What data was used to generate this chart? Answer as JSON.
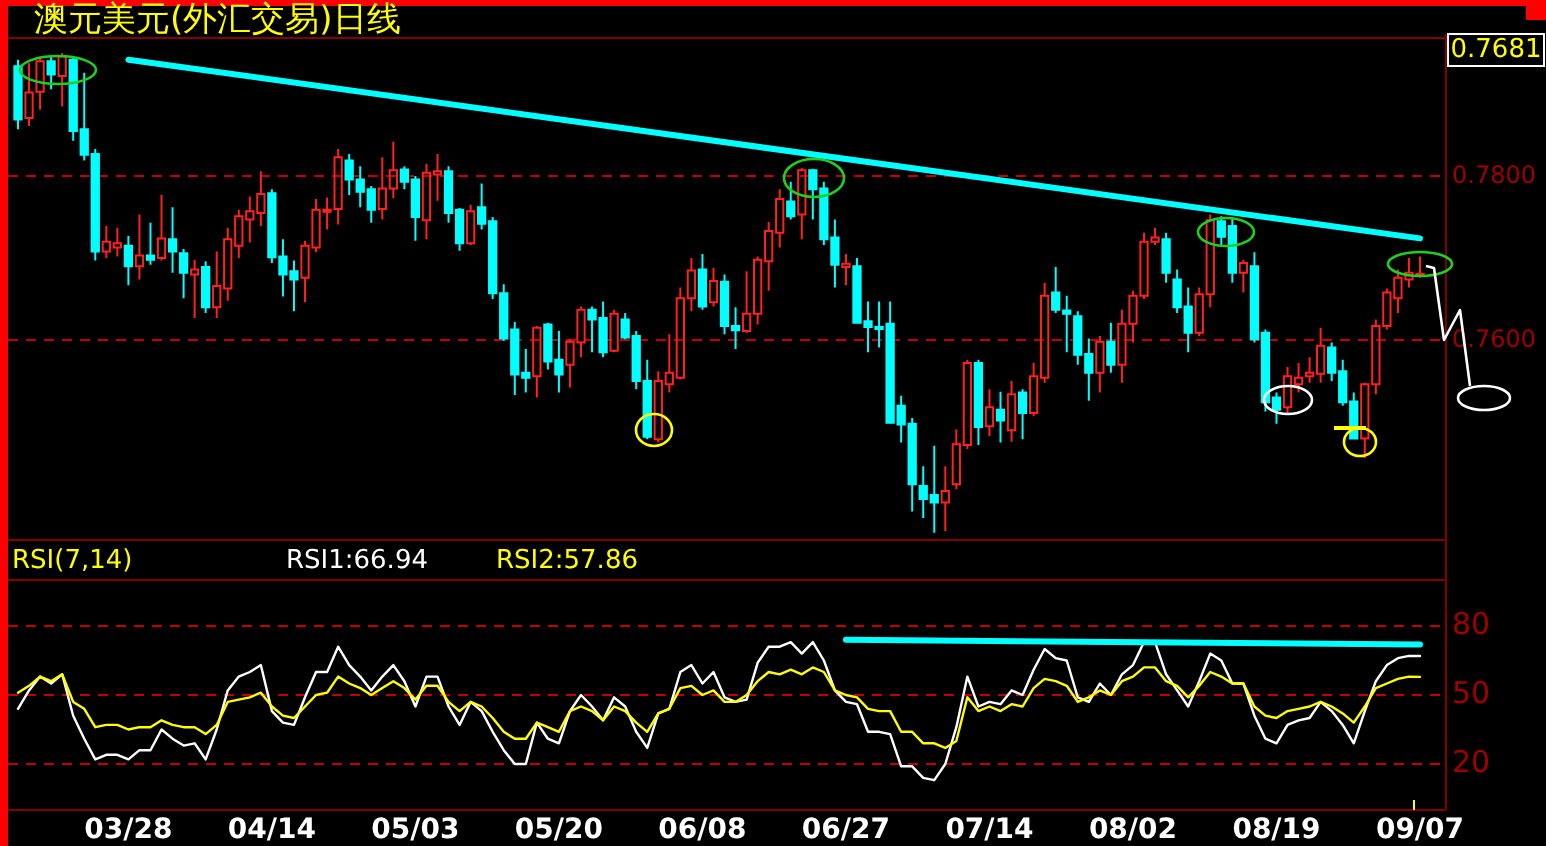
{
  "chart_data": [
    {
      "type": "candlestick",
      "title": "澳元美元(外汇交易)日线",
      "categories": [
        null,
        null,
        null,
        null,
        null,
        null,
        null,
        null,
        null,
        null,
        "03/28",
        null,
        null,
        null,
        null,
        null,
        null,
        null,
        null,
        null,
        null,
        null,
        null,
        "04/14",
        null,
        null,
        null,
        null,
        null,
        null,
        null,
        null,
        null,
        null,
        null,
        null,
        "05/03",
        null,
        null,
        null,
        null,
        null,
        null,
        null,
        null,
        null,
        null,
        null,
        null,
        "05/20",
        null,
        null,
        null,
        null,
        null,
        null,
        null,
        null,
        null,
        null,
        null,
        null,
        "06/08",
        null,
        null,
        null,
        null,
        null,
        null,
        null,
        null,
        null,
        null,
        null,
        null,
        "06/27",
        null,
        null,
        null,
        null,
        null,
        null,
        null,
        null,
        null,
        null,
        null,
        null,
        "07/14",
        null,
        null,
        null,
        null,
        null,
        null,
        null,
        null,
        null,
        null,
        null,
        null,
        "08/02",
        null,
        null,
        null,
        null,
        null,
        null,
        null,
        null,
        null,
        null,
        null,
        null,
        "08/19",
        null,
        null,
        null,
        null,
        null,
        null,
        null,
        null,
        null,
        null,
        null,
        null,
        "09/07"
      ],
      "ohlc": [
        [
          0.7934,
          0.7942,
          0.7857,
          0.7869
        ],
        [
          0.7871,
          0.7938,
          0.7861,
          0.7902
        ],
        [
          0.7903,
          0.7946,
          0.7881,
          0.794
        ],
        [
          0.794,
          0.7946,
          0.7906,
          0.7924
        ],
        [
          0.7922,
          0.795,
          0.7885,
          0.7946
        ],
        [
          0.7942,
          0.7946,
          0.7843,
          0.7855
        ],
        [
          0.7857,
          0.7926,
          0.7819,
          0.7826
        ],
        [
          0.7827,
          0.7833,
          0.7697,
          0.7708
        ],
        [
          0.7708,
          0.7739,
          0.77,
          0.772
        ],
        [
          0.7713,
          0.7737,
          0.7702,
          0.7718
        ],
        [
          0.7715,
          0.7727,
          0.7667,
          0.769
        ],
        [
          0.769,
          0.7753,
          0.7674,
          0.7703
        ],
        [
          0.7703,
          0.7743,
          0.7692,
          0.7698
        ],
        [
          0.77,
          0.7777,
          0.7697,
          0.7724
        ],
        [
          0.7723,
          0.7762,
          0.7682,
          0.7708
        ],
        [
          0.7706,
          0.7711,
          0.7651,
          0.7682
        ],
        [
          0.768,
          0.7698,
          0.7627,
          0.7686
        ],
        [
          0.7689,
          0.7696,
          0.7633,
          0.764
        ],
        [
          0.764,
          0.7708,
          0.7627,
          0.7666
        ],
        [
          0.7663,
          0.7737,
          0.7648,
          0.7723
        ],
        [
          0.7715,
          0.7759,
          0.77,
          0.7751
        ],
        [
          0.7747,
          0.7775,
          0.7719,
          0.7757
        ],
        [
          0.7755,
          0.7806,
          0.7739,
          0.7778
        ],
        [
          0.7779,
          0.7784,
          0.7694,
          0.7701
        ],
        [
          0.7702,
          0.7723,
          0.7653,
          0.768
        ],
        [
          0.7684,
          0.7697,
          0.7635,
          0.7674
        ],
        [
          0.7676,
          0.7721,
          0.7646,
          0.7715
        ],
        [
          0.7713,
          0.7772,
          0.7707,
          0.7759
        ],
        [
          0.7758,
          0.7774,
          0.7735,
          0.7759
        ],
        [
          0.776,
          0.7833,
          0.7741,
          0.7823
        ],
        [
          0.7819,
          0.7827,
          0.7777,
          0.7796
        ],
        [
          0.7796,
          0.7812,
          0.7762,
          0.7781
        ],
        [
          0.7784,
          0.7788,
          0.7743,
          0.7759
        ],
        [
          0.776,
          0.7823,
          0.7747,
          0.7785
        ],
        [
          0.7785,
          0.7842,
          0.7773,
          0.7807
        ],
        [
          0.7808,
          0.7812,
          0.7784,
          0.7793
        ],
        [
          0.7796,
          0.78,
          0.7721,
          0.775
        ],
        [
          0.7746,
          0.7815,
          0.7723,
          0.7804
        ],
        [
          0.7802,
          0.7827,
          0.777,
          0.7806
        ],
        [
          0.7806,
          0.7812,
          0.7743,
          0.7755
        ],
        [
          0.7759,
          0.7761,
          0.7709,
          0.7718
        ],
        [
          0.7718,
          0.7765,
          0.7716,
          0.7757
        ],
        [
          0.7762,
          0.7791,
          0.7735,
          0.7742
        ],
        [
          0.7745,
          0.775,
          0.765,
          0.7657
        ],
        [
          0.7657,
          0.7668,
          0.7599,
          0.7602
        ],
        [
          0.7613,
          0.7622,
          0.7533,
          0.7558
        ],
        [
          0.756,
          0.7589,
          0.7536,
          0.7554
        ],
        [
          0.7556,
          0.7617,
          0.753,
          0.7615
        ],
        [
          0.7619,
          0.7621,
          0.7564,
          0.7574
        ],
        [
          0.7576,
          0.7611,
          0.7536,
          0.7558
        ],
        [
          0.757,
          0.7601,
          0.7542,
          0.7598
        ],
        [
          0.7597,
          0.7641,
          0.7579,
          0.7637
        ],
        [
          0.7637,
          0.7641,
          0.7585,
          0.7625
        ],
        [
          0.7627,
          0.7647,
          0.7579,
          0.7585
        ],
        [
          0.7587,
          0.7637,
          0.7585,
          0.7632
        ],
        [
          0.7625,
          0.7633,
          0.7601,
          0.7603
        ],
        [
          0.7605,
          0.7611,
          0.754,
          0.755
        ],
        [
          0.755,
          0.7576,
          0.7479,
          0.7482
        ],
        [
          0.7479,
          0.7562,
          0.7475,
          0.755
        ],
        [
          0.7546,
          0.7607,
          0.7536,
          0.756
        ],
        [
          0.7554,
          0.7664,
          0.7552,
          0.7651
        ],
        [
          0.7651,
          0.77,
          0.7635,
          0.7685
        ],
        [
          0.7686,
          0.7705,
          0.7637,
          0.7641
        ],
        [
          0.7646,
          0.7688,
          0.7641,
          0.7672
        ],
        [
          0.7671,
          0.768,
          0.7607,
          0.7617
        ],
        [
          0.7617,
          0.764,
          0.7589,
          0.7612
        ],
        [
          0.7611,
          0.7684,
          0.7609,
          0.7632
        ],
        [
          0.7632,
          0.7702,
          0.7619,
          0.7698
        ],
        [
          0.7696,
          0.7744,
          0.766,
          0.7733
        ],
        [
          0.7731,
          0.7784,
          0.7713,
          0.7772
        ],
        [
          0.7769,
          0.7793,
          0.7747,
          0.7751
        ],
        [
          0.7753,
          0.781,
          0.7723,
          0.7807
        ],
        [
          0.7807,
          0.7809,
          0.7747,
          0.7784
        ],
        [
          0.7785,
          0.7793,
          0.7716,
          0.7723
        ],
        [
          0.7725,
          0.7747,
          0.7664,
          0.7692
        ],
        [
          0.7689,
          0.7705,
          0.7667,
          0.7693
        ],
        [
          0.769,
          0.77,
          0.762,
          0.7621
        ],
        [
          0.7623,
          0.7647,
          0.7585,
          0.7616
        ],
        [
          0.7616,
          0.7647,
          0.7591,
          0.7614
        ],
        [
          0.762,
          0.7647,
          0.7498,
          0.7499
        ],
        [
          0.752,
          0.7532,
          0.7475,
          0.7497
        ],
        [
          0.7498,
          0.7505,
          0.7391,
          0.7424
        ],
        [
          0.7422,
          0.7446,
          0.7383,
          0.7406
        ],
        [
          0.7411,
          0.7471,
          0.7365,
          0.7402
        ],
        [
          0.7402,
          0.7446,
          0.7367,
          0.7416
        ],
        [
          0.7424,
          0.7491,
          0.7418,
          0.7473
        ],
        [
          0.7472,
          0.7576,
          0.7467,
          0.7572
        ],
        [
          0.7572,
          0.7576,
          0.7472,
          0.7494
        ],
        [
          0.7495,
          0.754,
          0.7483,
          0.7518
        ],
        [
          0.7515,
          0.7537,
          0.7475,
          0.7502
        ],
        [
          0.749,
          0.755,
          0.7476,
          0.7534
        ],
        [
          0.7536,
          0.754,
          0.7479,
          0.7511
        ],
        [
          0.7511,
          0.7572,
          0.7507,
          0.7556
        ],
        [
          0.7554,
          0.767,
          0.7548,
          0.7654
        ],
        [
          0.7658,
          0.7689,
          0.7633,
          0.7637
        ],
        [
          0.7636,
          0.7654,
          0.7585,
          0.7632
        ],
        [
          0.7629,
          0.7635,
          0.757,
          0.7582
        ],
        [
          0.7583,
          0.7602,
          0.7526,
          0.756
        ],
        [
          0.756,
          0.7605,
          0.7536,
          0.7598
        ],
        [
          0.7598,
          0.7621,
          0.756,
          0.757
        ],
        [
          0.757,
          0.7637,
          0.7548,
          0.762
        ],
        [
          0.762,
          0.766,
          0.7597,
          0.7654
        ],
        [
          0.7654,
          0.7731,
          0.765,
          0.772
        ],
        [
          0.772,
          0.7737,
          0.7716,
          0.7725
        ],
        [
          0.7723,
          0.7731,
          0.767,
          0.7682
        ],
        [
          0.7674,
          0.7686,
          0.7633,
          0.764
        ],
        [
          0.7641,
          0.7664,
          0.7585,
          0.7609
        ],
        [
          0.7609,
          0.7664,
          0.7605,
          0.7656
        ],
        [
          0.7656,
          0.7753,
          0.764,
          0.7746
        ],
        [
          0.7745,
          0.7751,
          0.7715,
          0.7726
        ],
        [
          0.7739,
          0.7749,
          0.767,
          0.7682
        ],
        [
          0.7682,
          0.7698,
          0.7658,
          0.7694
        ],
        [
          0.769,
          0.7707,
          0.7597,
          0.7601
        ],
        [
          0.7609,
          0.7613,
          0.7513,
          0.7524
        ],
        [
          0.753,
          0.7536,
          0.7498,
          0.7515
        ],
        [
          0.7518,
          0.7567,
          0.7511,
          0.7556
        ],
        [
          0.7546,
          0.7572,
          0.7536,
          0.7554
        ],
        [
          0.7556,
          0.7579,
          0.7548,
          0.756
        ],
        [
          0.7559,
          0.7615,
          0.7548,
          0.7593
        ],
        [
          0.7591,
          0.7597,
          0.755,
          0.756
        ],
        [
          0.7562,
          0.7576,
          0.752,
          0.7524
        ],
        [
          0.7525,
          0.7536,
          0.7479,
          0.748
        ],
        [
          0.748,
          0.7548,
          0.7456,
          0.7546
        ],
        [
          0.7546,
          0.7625,
          0.7534,
          0.7617
        ],
        [
          0.7617,
          0.7663,
          0.7613,
          0.7658
        ],
        [
          0.7651,
          0.7686,
          0.7633,
          0.7676
        ],
        [
          0.7674,
          0.77,
          0.7664,
          0.7682
        ],
        [
          0.768,
          0.7702,
          0.7676,
          0.7681
        ]
      ],
      "series": [
        {
          "type": "line",
          "x": [
            "03/28",
            "09/07"
          ],
          "values": [
            0.7942,
            0.7724
          ],
          "color": "#00ffff"
        }
      ],
      "ylim": [
        0.7361,
        0.7966
      ],
      "yticks": [
        {
          "value": 0.78,
          "label": "0.7800"
        },
        {
          "value": 0.76,
          "label": "0.7600"
        }
      ],
      "grid": "y",
      "tick_labels": "y",
      "annotations": [
        "0.7681"
      ]
    },
    {
      "type": "line",
      "title": "RSI(7,14)",
      "categories": [
        null,
        null,
        null,
        null,
        null,
        null,
        null,
        null,
        null,
        null,
        "03/28",
        null,
        null,
        null,
        null,
        null,
        null,
        null,
        null,
        null,
        null,
        null,
        null,
        "04/14",
        null,
        null,
        null,
        null,
        null,
        null,
        null,
        null,
        null,
        null,
        null,
        null,
        "05/03",
        null,
        null,
        null,
        null,
        null,
        null,
        null,
        null,
        null,
        null,
        null,
        null,
        "05/20",
        null,
        null,
        null,
        null,
        null,
        null,
        null,
        null,
        null,
        null,
        null,
        null,
        "06/08",
        null,
        null,
        null,
        null,
        null,
        null,
        null,
        null,
        null,
        null,
        null,
        null,
        "06/27",
        null,
        null,
        null,
        null,
        null,
        null,
        null,
        null,
        null,
        null,
        null,
        null,
        "07/14",
        null,
        null,
        null,
        null,
        null,
        null,
        null,
        null,
        null,
        null,
        null,
        null,
        "08/02",
        null,
        null,
        null,
        null,
        null,
        null,
        null,
        null,
        null,
        null,
        null,
        null,
        "08/19",
        null,
        null,
        null,
        null,
        null,
        null,
        null,
        null,
        null,
        null,
        null,
        null,
        "09/07"
      ],
      "series": [
        {
          "name": "RSI1:66.94",
          "color": "#ffffff",
          "values": [
            44,
            52,
            58,
            55,
            59,
            41,
            31,
            22,
            24,
            24,
            22,
            26,
            26,
            35,
            31,
            28,
            29,
            22,
            35,
            52,
            58,
            60,
            63,
            43,
            38,
            37,
            49,
            60,
            60,
            71,
            63,
            58,
            52,
            58,
            63,
            56,
            45,
            58,
            58,
            45,
            37,
            47,
            43,
            34,
            26,
            20,
            20,
            38,
            31,
            29,
            43,
            50,
            45,
            39,
            49,
            45,
            34,
            27,
            42,
            44,
            60,
            63,
            55,
            60,
            49,
            47,
            48,
            64,
            71,
            71,
            73,
            68,
            73,
            65,
            52,
            47,
            46,
            34,
            34,
            33,
            19,
            19,
            14,
            13,
            20,
            36,
            58,
            45,
            47,
            46,
            52,
            50,
            61,
            70,
            66,
            65,
            49,
            47,
            55,
            50,
            59,
            63,
            73,
            73,
            59,
            52,
            45,
            56,
            68,
            65,
            55,
            55,
            41,
            31,
            29,
            37,
            39,
            40,
            47,
            43,
            37,
            29,
            43,
            56,
            63,
            66,
            67,
            66.94
          ]
        },
        {
          "name": "RSI2:57.86",
          "color": "#ffff00",
          "values": [
            51,
            54,
            58,
            56,
            59,
            47,
            44,
            36,
            37,
            37,
            35,
            36,
            36,
            39,
            37,
            36,
            36,
            33,
            37,
            47,
            48,
            49,
            51,
            45,
            41,
            40,
            45,
            50,
            51,
            58,
            55,
            53,
            50,
            53,
            56,
            53,
            48,
            54,
            54,
            47,
            43,
            47,
            45,
            40,
            34,
            31,
            31,
            38,
            36,
            34,
            43,
            45,
            43,
            39,
            45,
            43,
            38,
            34,
            42,
            44,
            53,
            54,
            50,
            52,
            47,
            47,
            50,
            56,
            60,
            59,
            61,
            59,
            62,
            60,
            52,
            50,
            49,
            44,
            43,
            43,
            34,
            34,
            29,
            29,
            27,
            30,
            49,
            43,
            45,
            43,
            46,
            45,
            53,
            57,
            56,
            54,
            47,
            49,
            52,
            50,
            56,
            58,
            62,
            62,
            56,
            54,
            49,
            54,
            60,
            58,
            55,
            55,
            45,
            41,
            40,
            43,
            44,
            45,
            47,
            45,
            42,
            38,
            45,
            53,
            55,
            57,
            58,
            57.86
          ]
        },
        {
          "type": "line",
          "x": [
            "06/27",
            "09/07"
          ],
          "values": [
            74,
            72
          ],
          "color": "#00ffff"
        }
      ],
      "ylim": [
        0,
        100
      ],
      "yticks": [
        80,
        50,
        20
      ],
      "grid": "y",
      "legend": "top left"
    }
  ]
}
